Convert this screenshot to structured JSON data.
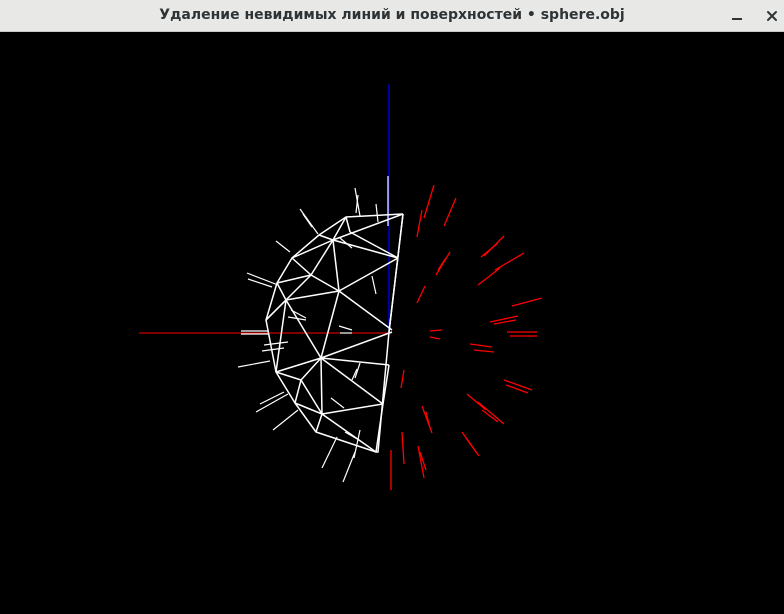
{
  "window": {
    "title": "Удаление невидимых линий и поверхностей • sphere.obj"
  },
  "controls": {
    "minimize_icon": "minimize-icon",
    "close_icon": "close-icon"
  },
  "colors": {
    "titlebar": "#e8e8e7",
    "title_text": "#2e3436",
    "background": "#000000",
    "mesh": "#ffffff",
    "x_axis": "#ff0000",
    "z_axis": "#0000ff",
    "hidden_normals": "#ff0000"
  }
}
